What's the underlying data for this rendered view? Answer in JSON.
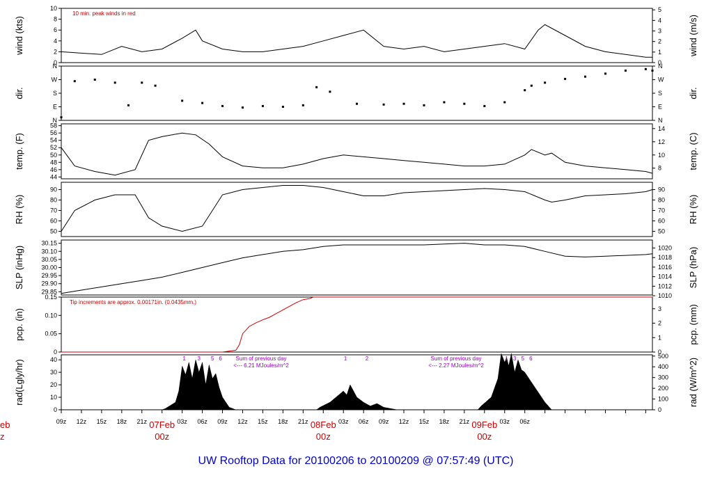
{
  "chart_data": {
    "type": "line",
    "title": "UW Rooftop Data for 20100206  to  20100209 @ 07:57:49  (UTC)",
    "x_ticks": [
      "09z",
      "12z",
      "15z",
      "18z",
      "21z",
      "03z",
      "06z",
      "09z",
      "12z",
      "15z",
      "18z",
      "21z",
      "03z",
      "06z",
      "09z",
      "12z",
      "15z",
      "18z",
      "21z",
      "03z",
      "06z"
    ],
    "day_labels": [
      {
        "date": "eb",
        "hour": "z"
      },
      {
        "date": "07Feb",
        "hour": "00z"
      },
      {
        "date": "08Feb",
        "hour": "00z"
      },
      {
        "date": "09Feb",
        "hour": "00z"
      }
    ],
    "panels": [
      {
        "id": "wind",
        "left_label": "wind (kts)",
        "right_label": "wind (m/s)",
        "left_ticks": [
          "0",
          "2",
          "4",
          "6",
          "8",
          "10"
        ],
        "right_ticks": [
          "0",
          "1",
          "2",
          "3",
          "4",
          "5"
        ],
        "ylim": [
          0,
          10
        ],
        "annotation": "10 min. peak winds in red",
        "hours": [
          0,
          6,
          9,
          12,
          15,
          18,
          20,
          21,
          24,
          27,
          30,
          33,
          36,
          39,
          42,
          45,
          48,
          51,
          54,
          57,
          60,
          63,
          66,
          69,
          71,
          72,
          75,
          78,
          81,
          84,
          87,
          88
        ],
        "values": [
          2,
          1.5,
          3,
          2,
          2.5,
          4.5,
          6,
          4,
          2.5,
          2,
          2,
          2.5,
          3,
          4,
          5,
          6,
          3,
          2.5,
          3,
          2,
          2.5,
          3,
          3.5,
          2.5,
          6,
          7,
          5,
          3,
          2,
          1.5,
          1,
          1
        ]
      },
      {
        "id": "dir",
        "left_label": "dir.",
        "right_label": "dir.",
        "left_ticks": [
          "N",
          "E",
          "S",
          "W",
          "N"
        ],
        "right_ticks": [
          "N",
          "E",
          "S",
          "W",
          "N"
        ],
        "ylim": [
          0,
          360
        ],
        "hours": [
          0,
          2,
          5,
          8,
          10,
          12,
          14,
          18,
          21,
          24,
          27,
          30,
          33,
          36,
          38,
          40,
          44,
          48,
          51,
          54,
          57,
          60,
          63,
          66,
          69,
          70,
          72,
          75,
          78,
          81,
          84,
          87,
          88
        ],
        "values": [
          20,
          260,
          270,
          250,
          100,
          250,
          230,
          130,
          115,
          95,
          85,
          95,
          90,
          100,
          220,
          190,
          110,
          105,
          110,
          100,
          120,
          110,
          95,
          120,
          200,
          230,
          250,
          275,
          290,
          310,
          330,
          340,
          330
        ]
      },
      {
        "id": "temp",
        "left_label": "temp. (F)",
        "right_label": "temp. (C)",
        "left_ticks": [
          "44",
          "46",
          "48",
          "50",
          "52",
          "54",
          "56",
          "58"
        ],
        "right_ticks": [
          "8",
          "10",
          "12",
          "14"
        ],
        "ylim": [
          43.5,
          58.5
        ],
        "hours": [
          0,
          2,
          5,
          8,
          11,
          13,
          15,
          18,
          20,
          22,
          24,
          27,
          30,
          33,
          36,
          39,
          42,
          45,
          48,
          51,
          54,
          57,
          60,
          63,
          66,
          69,
          70,
          72,
          73,
          75,
          78,
          81,
          84,
          87,
          88
        ],
        "values": [
          52,
          47,
          45.5,
          44.5,
          46,
          54,
          55,
          56,
          55.5,
          53,
          49.5,
          47,
          46.5,
          46.5,
          47.5,
          49,
          50,
          49.5,
          49,
          48.5,
          48,
          47.5,
          47,
          47,
          47.5,
          50,
          51.5,
          50,
          50.5,
          48,
          47,
          46.5,
          46,
          45.5,
          45
        ]
      },
      {
        "id": "rh",
        "left_label": "RH (%)",
        "right_label": "RH (%)",
        "left_ticks": [
          "50",
          "60",
          "70",
          "80",
          "90"
        ],
        "right_ticks": [
          "50",
          "60",
          "70",
          "80",
          "90"
        ],
        "ylim": [
          45,
          97
        ],
        "hours": [
          0,
          2,
          5,
          8,
          11,
          13,
          15,
          18,
          21,
          22,
          24,
          27,
          30,
          33,
          36,
          39,
          42,
          45,
          48,
          51,
          54,
          57,
          60,
          63,
          66,
          69,
          72,
          73,
          75,
          78,
          81,
          84,
          87,
          88
        ],
        "values": [
          50,
          70,
          80,
          85,
          85,
          63,
          55,
          50,
          55,
          65,
          85,
          90,
          92,
          94,
          94,
          92,
          88,
          84,
          84,
          87,
          88,
          89,
          90,
          91,
          90,
          88,
          80,
          78,
          80,
          84,
          85,
          86,
          88,
          90
        ]
      },
      {
        "id": "slp",
        "left_label": "SLP (inHg)",
        "right_label": "SLP (hPa)",
        "left_ticks": [
          "29.85",
          "29.90",
          "29.95",
          "30.00",
          "30.05",
          "30.10",
          "30.15"
        ],
        "right_ticks": [
          "1010",
          "1012",
          "1014",
          "1016",
          "1018",
          "1020"
        ],
        "ylim": [
          29.83,
          30.17
        ],
        "hours": [
          0,
          3,
          6,
          9,
          12,
          15,
          18,
          21,
          24,
          27,
          30,
          33,
          36,
          39,
          42,
          45,
          48,
          51,
          54,
          57,
          60,
          63,
          66,
          69,
          72,
          75,
          78,
          81,
          84,
          87,
          88
        ],
        "values": [
          29.84,
          29.86,
          29.88,
          29.9,
          29.92,
          29.94,
          29.97,
          30.0,
          30.03,
          30.06,
          30.08,
          30.1,
          30.11,
          30.13,
          30.14,
          30.14,
          30.14,
          30.14,
          30.14,
          30.145,
          30.15,
          30.14,
          30.14,
          30.13,
          30.1,
          30.07,
          30.065,
          30.07,
          30.075,
          30.08,
          30.085
        ]
      },
      {
        "id": "pcp",
        "left_label": "pcp. (in)",
        "right_label": "pcp. (mm)",
        "left_ticks": [
          "0",
          "0.05",
          "0.10",
          "0.15"
        ],
        "right_ticks": [
          "0",
          "1",
          "2",
          "3"
        ],
        "ylim": [
          0,
          0.15
        ],
        "annotation": "Tip increments are approx. 0.00171in. (0.0435mm.)",
        "hours": [
          0,
          24,
          26,
          26.5,
          27,
          28,
          29,
          30,
          31,
          32,
          33,
          34,
          35,
          36,
          37,
          37.5,
          88
        ],
        "values": [
          0,
          0,
          0.005,
          0.02,
          0.05,
          0.07,
          0.08,
          0.088,
          0.095,
          0.105,
          0.115,
          0.125,
          0.135,
          0.143,
          0.146,
          0.15,
          0.15
        ]
      },
      {
        "id": "rad",
        "left_label": "rad(Lgly/hr)",
        "right_label": "rad (W/m^2)",
        "left_ticks": [
          "0",
          "10",
          "20",
          "30",
          "40"
        ],
        "right_ticks": [
          "0",
          "100",
          "200",
          "300",
          "400",
          "500"
        ],
        "ylim": [
          0,
          44
        ],
        "notes": [
          {
            "text": "Sum of previous day",
            "sub": "<--- 6.21 MJoules/m^2"
          },
          {
            "text": "Sum of previous day",
            "sub": "<--- 2.27 MJoules/m^2"
          }
        ],
        "markers": [
          {
            "hour": 18.3,
            "label": "1"
          },
          {
            "hour": 20.5,
            "label": "3"
          },
          {
            "hour": 22.5,
            "label": "5"
          },
          {
            "hour": 23.7,
            "label": "6"
          },
          {
            "hour": 42.3,
            "label": "1"
          },
          {
            "hour": 45.5,
            "label": "2"
          },
          {
            "hour": 66.3,
            "label": "1"
          },
          {
            "hour": 67.5,
            "label": "3"
          },
          {
            "hour": 68.7,
            "label": "5"
          },
          {
            "hour": 69.9,
            "label": "6"
          }
        ],
        "hours": [
          0,
          15,
          15.5,
          17,
          17.5,
          18,
          18.5,
          19,
          19.5,
          20,
          20.5,
          21,
          21.5,
          22,
          22.5,
          23,
          23.5,
          24,
          25,
          26,
          38,
          38.5,
          40,
          42,
          42.5,
          43,
          44,
          45,
          46,
          47,
          48,
          50,
          62,
          62.5,
          64,
          65,
          65.5,
          66,
          66.3,
          66.6,
          67,
          67.5,
          68,
          68.5,
          69,
          70,
          71,
          72,
          73,
          88
        ],
        "values": [
          0,
          0,
          1,
          6,
          15,
          35,
          28,
          38,
          25,
          40,
          30,
          38,
          20,
          36,
          25,
          29,
          18,
          10,
          2,
          0,
          0,
          2,
          6,
          15,
          12,
          20,
          10,
          6,
          3,
          5,
          2,
          0,
          0,
          3,
          10,
          25,
          45,
          38,
          42,
          35,
          45,
          30,
          40,
          32,
          30,
          22,
          14,
          6,
          0,
          0
        ]
      }
    ]
  }
}
